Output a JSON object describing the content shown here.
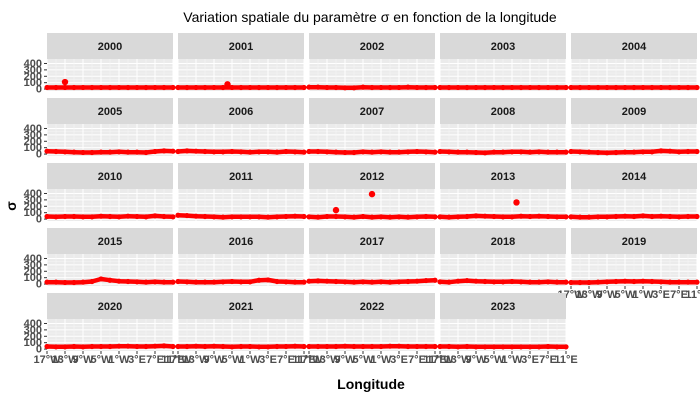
{
  "chart_data": {
    "type": "scatter",
    "title": "Variation spatiale du paramètre σ en fonction de la longitude",
    "xlabel": "Longitude",
    "ylabel": "σ",
    "facet_by": "year",
    "facets": [
      "2000",
      "2001",
      "2002",
      "2003",
      "2004",
      "2005",
      "2006",
      "2007",
      "2008",
      "2009",
      "2010",
      "2011",
      "2012",
      "2013",
      "2014",
      "2015",
      "2016",
      "2017",
      "2018",
      "2019",
      "2020",
      "2021",
      "2022",
      "2023"
    ],
    "x_unit": "degrees longitude",
    "xlim": [
      -17,
      11
    ],
    "x_tick_labels": [
      "17°W",
      "13°W",
      "9°W",
      "5°W",
      "1°W",
      "3°E",
      "7°E",
      "11°E"
    ],
    "y_ticks": [
      0,
      100,
      200,
      300,
      400
    ],
    "ylim": [
      -30,
      470
    ],
    "grid": true,
    "marker_color": "#ff0000",
    "baseline_series": {
      "description": "Each facet shows a dense row of red points near σ ≈ 10–50 across all longitudes",
      "x": [
        -17,
        -15,
        -13,
        -11,
        -9,
        -7,
        -5,
        -3,
        -1,
        1,
        3,
        5,
        7,
        9,
        11
      ],
      "y_default": [
        25,
        25,
        25,
        25,
        25,
        25,
        25,
        25,
        25,
        25,
        25,
        25,
        25,
        25,
        25
      ],
      "y_by_year": {
        "2002": [
          30,
          30,
          25,
          25,
          20,
          20,
          30,
          25,
          25,
          25,
          25,
          30,
          25,
          25,
          25
        ],
        "2005": [
          45,
          40,
          35,
          30,
          25,
          25,
          30,
          30,
          35,
          30,
          30,
          25,
          40,
          50,
          45
        ],
        "2006": [
          40,
          50,
          45,
          40,
          35,
          35,
          40,
          35,
          30,
          35,
          35,
          30,
          40,
          35,
          30
        ],
        "2007": [
          40,
          40,
          35,
          30,
          25,
          25,
          35,
          30,
          35,
          30,
          30,
          35,
          40,
          35,
          30
        ],
        "2008": [
          40,
          35,
          30,
          30,
          25,
          20,
          30,
          30,
          35,
          35,
          30,
          35,
          30,
          30,
          30
        ],
        "2009": [
          40,
          35,
          30,
          25,
          20,
          25,
          30,
          30,
          35,
          35,
          50,
          45,
          35,
          40,
          40
        ],
        "2010": [
          40,
          35,
          40,
          40,
          35,
          35,
          45,
          40,
          35,
          45,
          40,
          35,
          50,
          40,
          35
        ],
        "2011": [
          60,
          55,
          45,
          40,
          35,
          30,
          35,
          35,
          35,
          35,
          30,
          35,
          40,
          45,
          40
        ],
        "2012": [
          35,
          30,
          40,
          40,
          35,
          30,
          40,
          30,
          35,
          30,
          35,
          30,
          35,
          40,
          35
        ],
        "2013": [
          35,
          30,
          35,
          40,
          50,
          45,
          40,
          35,
          35,
          45,
          40,
          45,
          40,
          35,
          35
        ],
        "2014": [
          35,
          30,
          30,
          35,
          35,
          40,
          45,
          40,
          50,
          40,
          45,
          40,
          35,
          40,
          40
        ],
        "2015": [
          30,
          30,
          25,
          25,
          30,
          40,
          80,
          60,
          45,
          40,
          35,
          30,
          35,
          30,
          30
        ],
        "2016": [
          40,
          35,
          30,
          30,
          30,
          35,
          40,
          35,
          35,
          60,
          65,
          40,
          35,
          30,
          30
        ],
        "2017": [
          45,
          50,
          45,
          40,
          35,
          30,
          35,
          30,
          35,
          30,
          35,
          40,
          45,
          55,
          60
        ],
        "2018": [
          35,
          30,
          45,
          55,
          45,
          40,
          35,
          35,
          40,
          35,
          30,
          30,
          35,
          30,
          30
        ],
        "2019": [
          25,
          25,
          25,
          30,
          35,
          40,
          45,
          40,
          45,
          40,
          35,
          30,
          30,
          30,
          30
        ],
        "2020": [
          40,
          35,
          35,
          40,
          35,
          40,
          40,
          40,
          45,
          45,
          40,
          40,
          45,
          50,
          40
        ],
        "2021": [
          40,
          40,
          45,
          40,
          45,
          40,
          35,
          40,
          40,
          35,
          35,
          40,
          40,
          45,
          40
        ],
        "2022": [
          40,
          40,
          40,
          40,
          45,
          40,
          40,
          40,
          40,
          45,
          45,
          40,
          40,
          40,
          40
        ],
        "2023": [
          40,
          40,
          35,
          40,
          35,
          35,
          35,
          35,
          35,
          35,
          35,
          35,
          40,
          35,
          35
        ]
      }
    },
    "outliers": [
      {
        "year": "2000",
        "x": -13,
        "y": 110
      },
      {
        "year": "2001",
        "x": -6,
        "y": 75
      },
      {
        "year": "2012",
        "x": -11,
        "y": 140
      },
      {
        "year": "2012",
        "x": -3,
        "y": 390
      },
      {
        "year": "2013",
        "x": 0,
        "y": 260
      }
    ]
  }
}
